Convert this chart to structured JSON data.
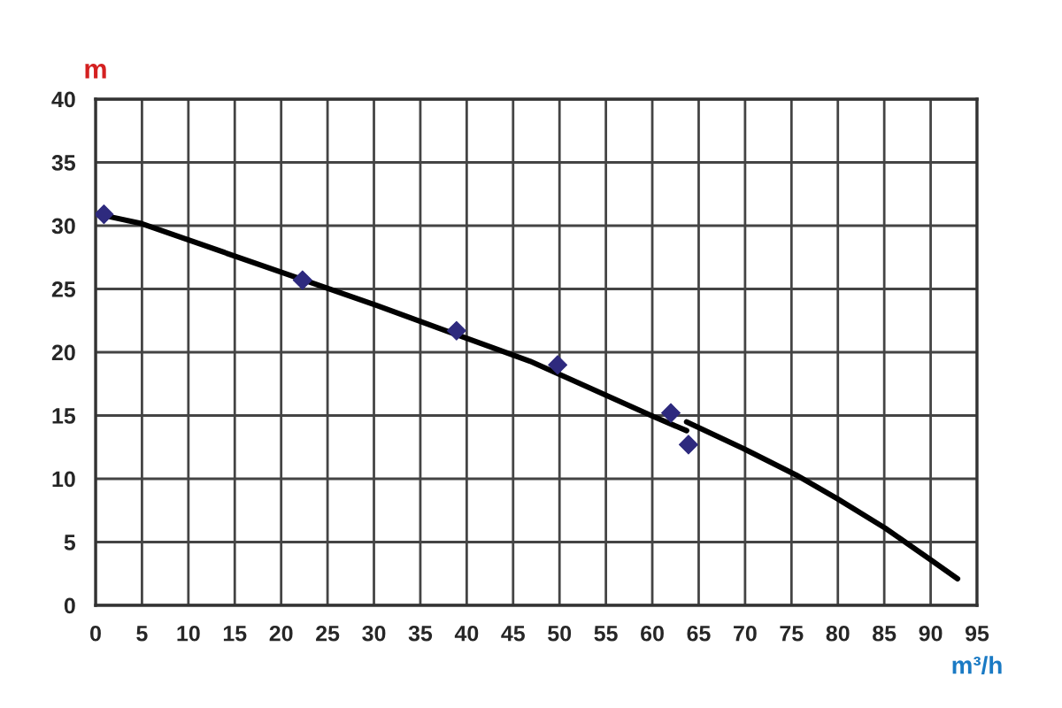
{
  "chart_data": {
    "type": "line",
    "xlabel": "m³/h",
    "ylabel": "m",
    "xlim": [
      0,
      95
    ],
    "ylim": [
      0,
      40
    ],
    "xticks": [
      0,
      5,
      10,
      15,
      20,
      25,
      30,
      35,
      40,
      45,
      50,
      55,
      60,
      65,
      70,
      75,
      80,
      85,
      90,
      95
    ],
    "yticks": [
      0,
      5,
      10,
      15,
      20,
      25,
      30,
      35,
      40
    ],
    "grid": true,
    "series": [
      {
        "color": "#000000",
        "x": [
          0.3,
          4.8,
          20.1,
          30.3,
          43.0,
          46.8,
          60.2,
          63.7
        ],
        "values": [
          30.9,
          30.2,
          26.3,
          23.7,
          20.3,
          19.3,
          14.9,
          13.8
        ]
      },
      {
        "color": "#000000",
        "x": [
          63.7,
          69.8,
          75.5,
          80.0,
          85.1,
          90.2,
          92.9
        ],
        "values": [
          14.5,
          12.4,
          10.3,
          8.4,
          6.1,
          3.5,
          2.1
        ]
      },
      {
        "type": "scatter",
        "color": "#2e2a7e",
        "marker": "diamond",
        "x": [
          0.9,
          22.3,
          38.9,
          49.8,
          62.0,
          63.9
        ],
        "values": [
          30.9,
          25.7,
          21.7,
          19.0,
          15.2,
          12.7
        ]
      }
    ]
  }
}
